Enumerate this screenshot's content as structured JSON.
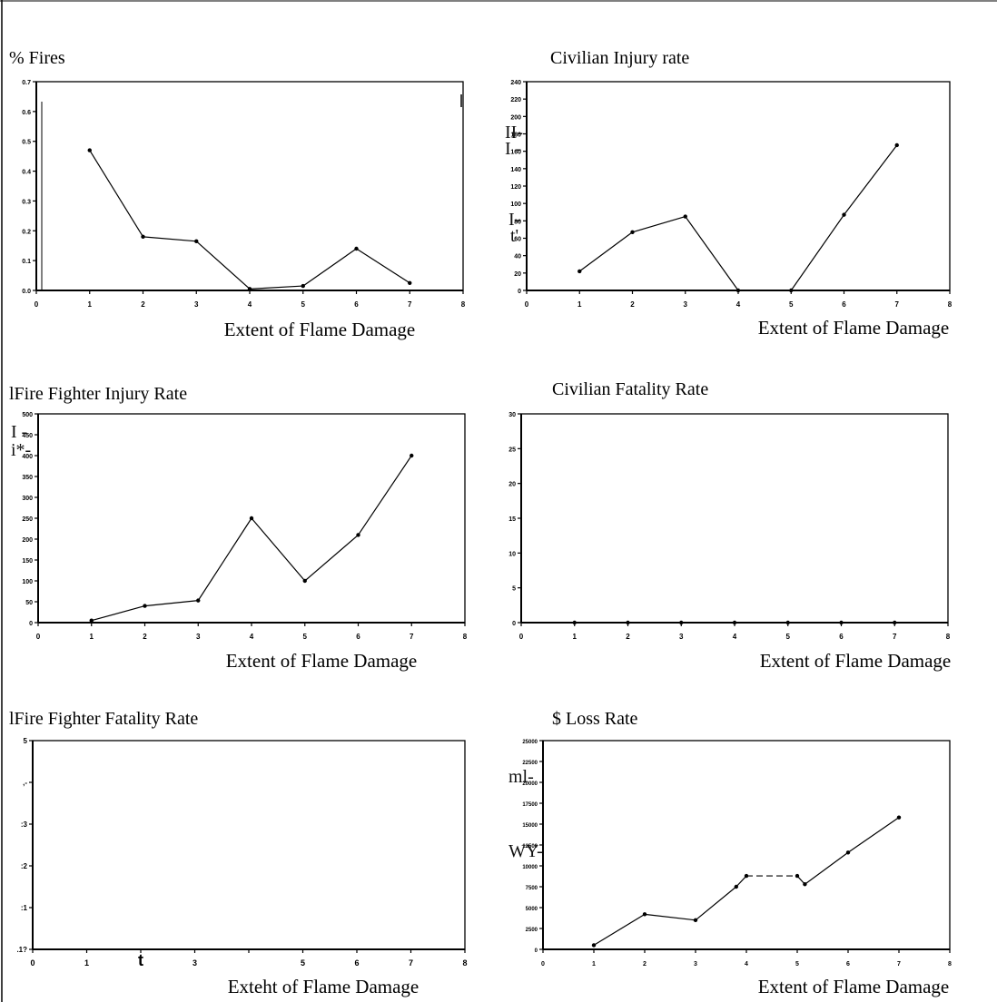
{
  "chart_data": [
    {
      "type": "line",
      "title": "% Fires",
      "xlabel": "Extent of Flame Damage",
      "ylabel": "",
      "xlim": [
        0,
        8
      ],
      "ylim": [
        0,
        0.7
      ],
      "x_ticks": [
        "0",
        "1",
        "2",
        "3",
        "4",
        "5",
        "6",
        "7",
        "8"
      ],
      "y_ticks": [
        "0.0",
        "0.1",
        "0.2",
        "0.3",
        "0.4",
        "0.5",
        "0.6",
        "0.7"
      ],
      "series": [
        {
          "x": [
            1,
            2,
            3,
            4,
            5,
            6,
            7
          ],
          "values": [
            0.47,
            0.18,
            0.165,
            0.005,
            0.015,
            0.14,
            0.025
          ]
        }
      ],
      "grid": false,
      "artifacts": []
    },
    {
      "type": "line",
      "title": "Civilian Injury rate",
      "xlabel": "Extent of Flame Damage",
      "ylabel": "",
      "xlim": [
        0,
        8
      ],
      "ylim": [
        0,
        240
      ],
      "x_ticks": [
        "0",
        "1",
        "2",
        "3",
        "4",
        "5",
        "6",
        "7",
        "8"
      ],
      "y_ticks": [
        "0",
        "20",
        "40",
        "60",
        "80",
        "100",
        "120",
        "140",
        "160",
        "180",
        "200",
        "220",
        "240"
      ],
      "series": [
        {
          "x": [
            1,
            2,
            3,
            4,
            5,
            6,
            7
          ],
          "values": [
            22,
            67,
            85,
            0,
            0,
            87,
            167
          ]
        }
      ],
      "grid": false,
      "artifacts": [
        "II-",
        "I -",
        "I-",
        "t'"
      ]
    },
    {
      "type": "line",
      "title": "lFire Fighter Injury Rate",
      "xlabel": "Extent of Flame Damage",
      "ylabel": "",
      "xlim": [
        0,
        8
      ],
      "ylim": [
        0,
        500
      ],
      "x_ticks": [
        "0",
        "1",
        "2",
        "3",
        "4",
        "5",
        "6",
        "7",
        "8"
      ],
      "y_ticks": [
        "0",
        "50",
        "100",
        "150",
        "200",
        "250",
        "300",
        "350",
        "400",
        "450",
        "500"
      ],
      "series": [
        {
          "x": [
            1,
            2,
            3,
            4,
            5,
            6,
            7
          ],
          "values": [
            5,
            40,
            53,
            250,
            100,
            210,
            400
          ]
        }
      ],
      "grid": false,
      "artifacts": [
        "I -",
        "i*-"
      ]
    },
    {
      "type": "line",
      "title": "Civilian Fatality Rate",
      "xlabel": "Extent of Flame Damage",
      "ylabel": "",
      "xlim": [
        0,
        8
      ],
      "ylim": [
        0,
        30
      ],
      "x_ticks": [
        "0",
        "1",
        "2",
        "3",
        "4",
        "5",
        "6",
        "7",
        "8"
      ],
      "y_ticks": [
        "0",
        "5",
        "10",
        "15",
        "20",
        "25",
        "30"
      ],
      "series": [
        {
          "x": [
            1,
            2,
            3,
            4,
            5,
            6,
            7
          ],
          "values": [
            0,
            0,
            0,
            0,
            0,
            0,
            0
          ]
        }
      ],
      "grid": false,
      "artifacts": []
    },
    {
      "type": "line",
      "title": "lFire Fighter Fatality Rate",
      "xlabel": "Exteht of Flame Damage",
      "ylabel": "",
      "xlim": [
        0,
        8
      ],
      "ylim": [
        0,
        5
      ],
      "x_ticks": [
        "0",
        "1",
        "t",
        "3",
        "",
        "5",
        "6",
        "7",
        "8"
      ],
      "y_ticks": [
        ".1?",
        ":1",
        ":2",
        ":3",
        ",-",
        "5"
      ],
      "series": [],
      "grid": false,
      "artifacts": []
    },
    {
      "type": "line",
      "title": "$ Loss Rate",
      "xlabel": "Extent of Flame Damage",
      "ylabel": "",
      "xlim": [
        0,
        8
      ],
      "ylim": [
        0,
        25000
      ],
      "x_ticks": [
        "0",
        "1",
        "2",
        "3",
        "4",
        "5",
        "6",
        "7",
        "8"
      ],
      "y_ticks": [
        "0",
        "2500",
        "5000",
        "7500",
        "10000",
        "12500",
        "15000",
        "17500",
        "20000",
        "22500",
        "25000"
      ],
      "series": [
        {
          "x": [
            1,
            2,
            3,
            3.8,
            4,
            5,
            5.15,
            6,
            7
          ],
          "values": [
            500,
            4200,
            3500,
            7500,
            8800,
            8800,
            7800,
            11600,
            15800
          ]
        }
      ],
      "dashed_segments": [
        [
          4,
          5
        ]
      ],
      "grid": false,
      "artifacts": [
        "ml-",
        "WY-"
      ]
    }
  ]
}
